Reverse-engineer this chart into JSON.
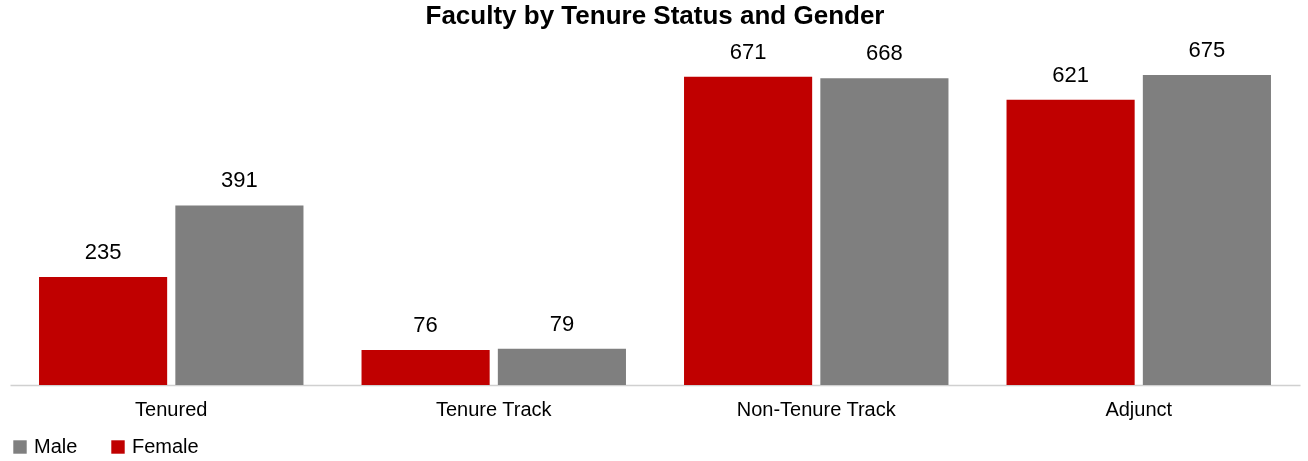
{
  "chart_data": {
    "type": "bar",
    "title": "Faculty by Tenure Status and Gender",
    "categories": [
      "Tenured",
      "Tenure Track",
      "Non-Tenure Track",
      "Adjunct"
    ],
    "series": [
      {
        "name": "Female",
        "color": "#c00000",
        "values": [
          235,
          76,
          671,
          621
        ]
      },
      {
        "name": "Male",
        "color": "#7f7f7f",
        "values": [
          391,
          79,
          668,
          675
        ]
      }
    ],
    "data_labels": true,
    "grid": false,
    "legend": "bottom"
  }
}
